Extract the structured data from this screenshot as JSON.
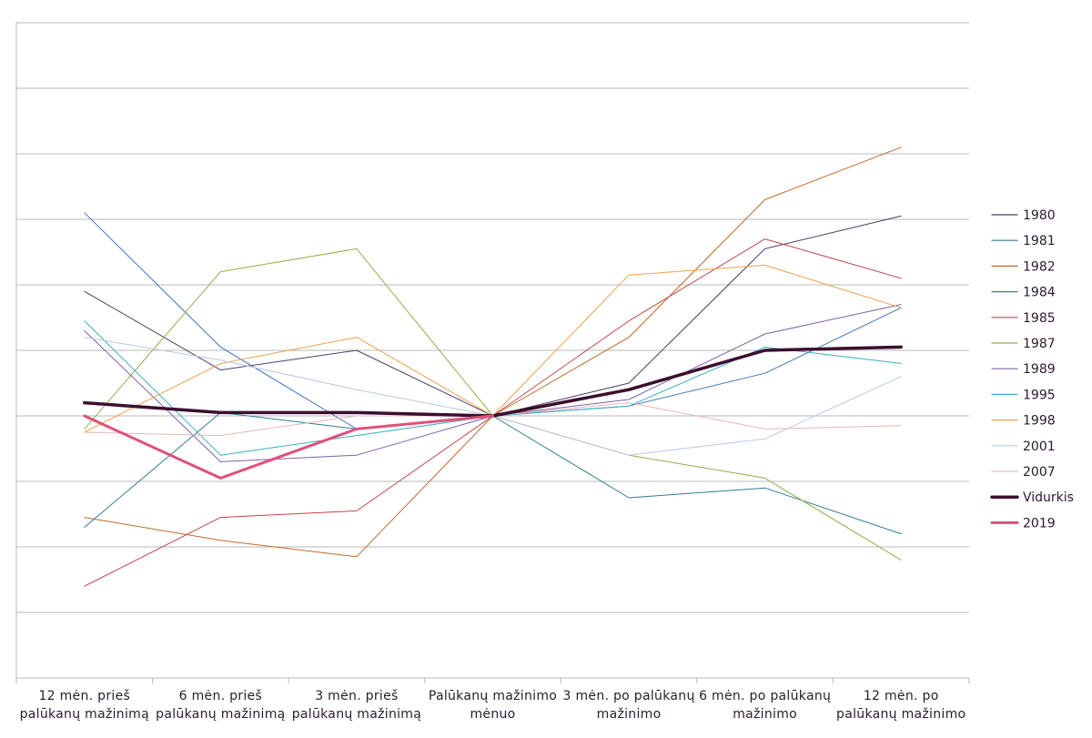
{
  "chart_data": {
    "type": "line",
    "categories": [
      [
        "12 mėn. prieš",
        "palūkanų mažinimą"
      ],
      [
        "6 mėn. prieš",
        "palūkanų mažinimą"
      ],
      [
        "3 mėn. prieš",
        "palūkanų mažinimą"
      ],
      [
        "Palūkanų mažinimo",
        "mėnuo"
      ],
      [
        "3 mėn. po palūkanų",
        "mažinimo"
      ],
      [
        "6 mėn. po palūkanų",
        "mažinimo"
      ],
      [
        "12 mėn. po",
        "palūkanų mažinimo"
      ]
    ],
    "ylim": [
      -4,
      6
    ],
    "grid": true,
    "legend_position": "right",
    "series": [
      {
        "name": "1980",
        "color": "#4b3f6b",
        "width": 1,
        "values": [
          1.9,
          0.7,
          1.0,
          0,
          0.5,
          2.55,
          3.05
        ]
      },
      {
        "name": "1981",
        "color": "#2e7c96",
        "width": 1,
        "values": [
          -1.7,
          0.05,
          -0.2,
          0,
          -1.25,
          -1.1,
          -1.8
        ]
      },
      {
        "name": "1982",
        "color": "#c2692a",
        "width": 1,
        "values": [
          -1.55,
          -1.9,
          -2.15,
          0,
          1.2,
          3.3,
          4.1
        ]
      },
      {
        "name": "1984",
        "color": "#3f78b5",
        "width": 1,
        "values": [
          3.1,
          1.05,
          -0.2,
          0,
          0.15,
          0.65,
          1.65
        ]
      },
      {
        "name": "1985",
        "color": "#c0444d",
        "width": 1,
        "values": [
          -2.6,
          -1.55,
          -1.45,
          0,
          1.45,
          2.7,
          2.1
        ]
      },
      {
        "name": "1987",
        "color": "#8fb04a",
        "width": 1,
        "values": [
          -0.2,
          2.2,
          2.55,
          0,
          -0.6,
          -0.95,
          -2.2
        ]
      },
      {
        "name": "1989",
        "color": "#7d61a8",
        "width": 1,
        "values": [
          1.3,
          -0.7,
          -0.6,
          0,
          0.25,
          1.25,
          1.7
        ]
      },
      {
        "name": "1995",
        "color": "#3aafc2",
        "width": 1,
        "values": [
          1.45,
          -0.6,
          -0.3,
          0,
          0.15,
          1.05,
          0.8
        ]
      },
      {
        "name": "1998",
        "color": "#f0a04b",
        "width": 1,
        "values": [
          -0.25,
          0.8,
          1.2,
          0,
          2.15,
          2.3,
          1.65
        ]
      },
      {
        "name": "2001",
        "color": "#b8c8e6",
        "width": 1,
        "values": [
          1.2,
          0.85,
          0.4,
          0,
          -0.6,
          -0.35,
          0.6
        ]
      },
      {
        "name": "2007",
        "color": "#e4b7b3",
        "width": 1,
        "values": [
          -0.25,
          -0.3,
          0,
          0,
          0.2,
          -0.2,
          -0.15
        ]
      },
      {
        "name": "Vidurkis",
        "color": "#3c0e2f",
        "width": 3.5,
        "values": [
          0.2,
          0.05,
          0.05,
          0,
          0.4,
          1.0,
          1.05
        ]
      },
      {
        "name": "2019",
        "color": "#e0507c",
        "width": 3,
        "values": [
          0,
          -0.95,
          -0.2,
          0,
          null,
          null,
          null
        ]
      }
    ]
  }
}
